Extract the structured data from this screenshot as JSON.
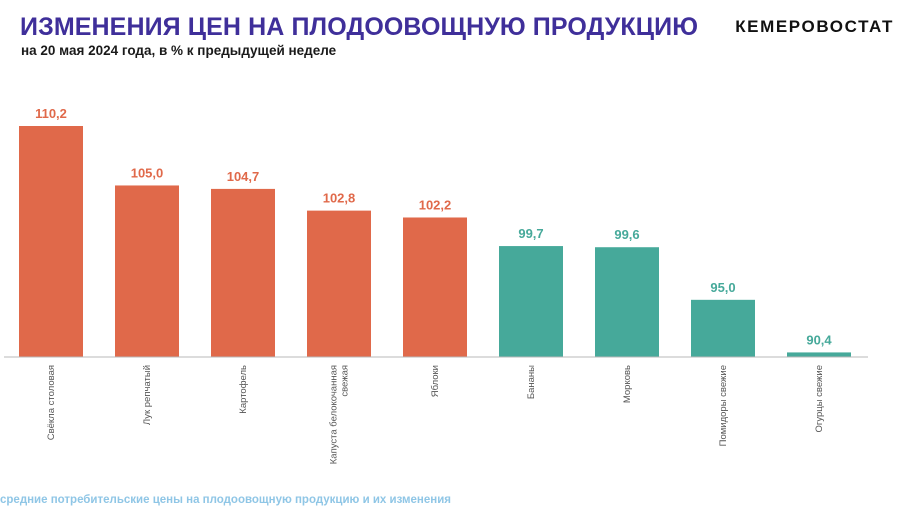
{
  "header": {
    "title": "ИЗМЕНЕНИЯ ЦЕН НА ПЛОДООВОЩНУЮ ПРОДУКЦИЮ",
    "subtitle": "на 20 мая 2024 года, в % к предыдущей неделе",
    "logo_text": "КЕМЕРОВОСТАТ"
  },
  "footer": {
    "note": "средние потребительские цены  на плодоовощную продукцию  и их изменения"
  },
  "colors": {
    "title": "#3f2f9a",
    "increase": "#e0694a",
    "decrease": "#46a99a",
    "axis": "#b8b8b8",
    "category_text": "#555555"
  },
  "chart_data": {
    "type": "bar",
    "title": "ИЗМЕНЕНИЯ ЦЕН НА ПЛОДООВОЩНУЮ ПРОДУКЦИЮ",
    "subtitle": "на 20 мая 2024 года, в % к предыдущей неделе",
    "xlabel": "",
    "ylabel": "",
    "ylim": [
      90,
      110.2
    ],
    "grid": false,
    "legend": "none",
    "categories": [
      "Свёкла столовая",
      "Лук репчатый",
      "Картофель",
      "Капуста белокочанная свежая",
      "Яблоки",
      "Бананы",
      "Морковь",
      "Помидоры свежие",
      "Огурцы свежие"
    ],
    "values": [
      110.2,
      105.0,
      104.7,
      102.8,
      102.2,
      99.7,
      99.6,
      95.0,
      90.4
    ],
    "labels": [
      "110,2",
      "105,0",
      "104,7",
      "102,8",
      "102,2",
      "99,7",
      "99,6",
      "95,0",
      "90,4"
    ],
    "category_lines": [
      [
        "Свёкла столовая"
      ],
      [
        "Лук репчатый"
      ],
      [
        "Картофель"
      ],
      [
        "Капуста белокочанная",
        "свежая"
      ],
      [
        "Яблоки"
      ],
      [
        "Бананы"
      ],
      [
        "Морковь"
      ],
      [
        "Помидоры свежие"
      ],
      [
        "Огурцы свежие"
      ]
    ],
    "color_rule": "values ≥ 100 increase color, values < 100 decrease color"
  }
}
